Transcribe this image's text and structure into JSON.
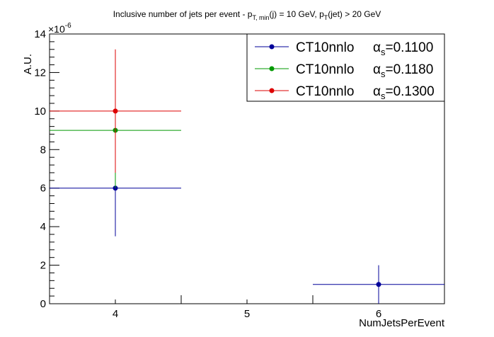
{
  "chart_data": {
    "type": "scatter",
    "title_parts": {
      "t1": "Inclusive number of jets per event - p",
      "t1_sub": "T, min",
      "t2": "(j) = 10 GeV, p",
      "t2_sub": "T",
      "t3": "(jet) > 20 GeV"
    },
    "xlabel": "NumJetsPerEvent",
    "ylabel": "A.U.",
    "y_exponent": "×10",
    "y_exponent_power": "-6",
    "xlim": [
      3.5,
      6.5
    ],
    "ylim": [
      0,
      14
    ],
    "x_ticks": [
      4,
      5,
      6
    ],
    "y_ticks": [
      0,
      2,
      4,
      6,
      8,
      10,
      12,
      14
    ],
    "grid": false,
    "legend_position": "top-right",
    "series": [
      {
        "legend_name": "CT10nnlo",
        "alpha_label": "α",
        "alpha_sub": "s",
        "alpha_value": "=0.1100",
        "color": "#000099",
        "points": [
          {
            "x": 4,
            "y": 6.0,
            "xerr": 0.5,
            "yerr_low": 2.5,
            "yerr_high": 2.5
          },
          {
            "x": 6,
            "y": 1.0,
            "xerr": 0.5,
            "yerr_low": 1.0,
            "yerr_high": 1.0
          }
        ]
      },
      {
        "legend_name": "CT10nnlo",
        "alpha_label": "α",
        "alpha_sub": "s",
        "alpha_value": "=0.1180",
        "color": "#009900",
        "points": [
          {
            "x": 4,
            "y": 9.0,
            "xerr": 0.5,
            "yerr_low": 3.0,
            "yerr_high": 3.0
          }
        ]
      },
      {
        "legend_name": "CT10nnlo",
        "alpha_label": "α",
        "alpha_sub": "s",
        "alpha_value": "=0.1300",
        "color": "#dd0000",
        "points": [
          {
            "x": 4,
            "y": 10.0,
            "xerr": 0.5,
            "yerr_low": 3.2,
            "yerr_high": 3.2
          }
        ]
      }
    ]
  }
}
